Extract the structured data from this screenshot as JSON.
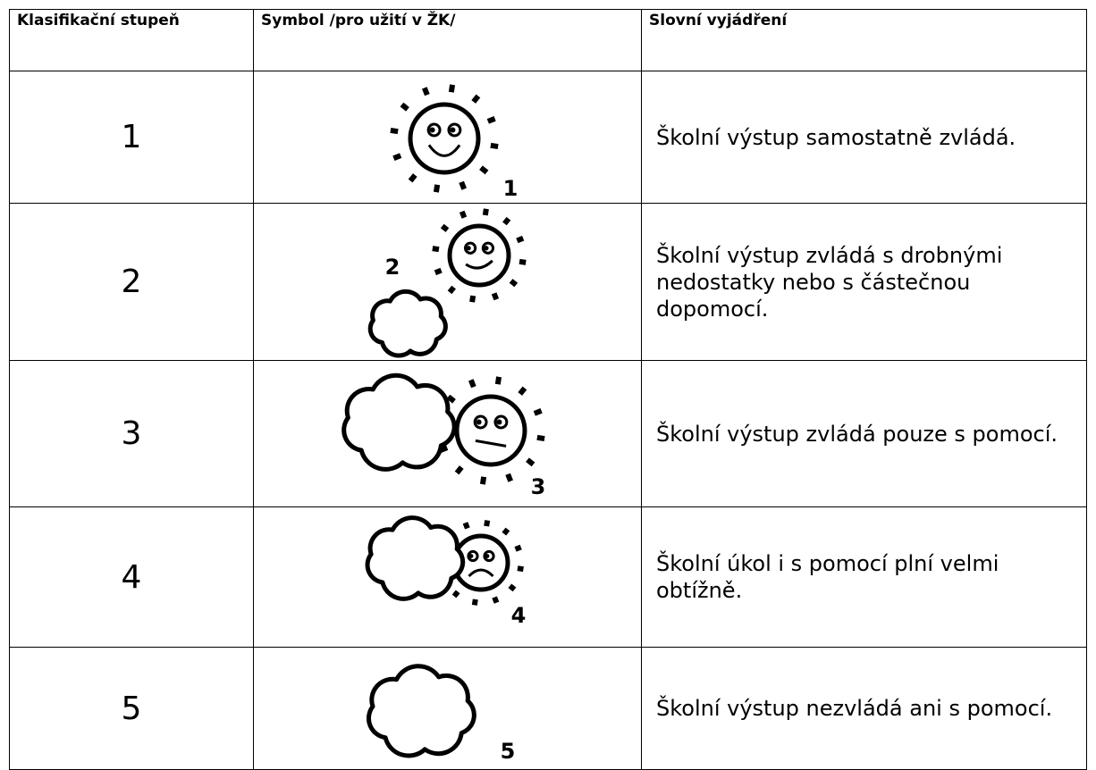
{
  "table": {
    "header": [
      "Klasifikační stupeň",
      "Symbol /pro užití v ŽK/",
      "Slovní vyjádření"
    ],
    "rows": [
      {
        "grade": "1",
        "symbol_label": "1",
        "description": "Školní výstup samostatně zvládá."
      },
      {
        "grade": "2",
        "symbol_label": "2",
        "description": "Školní výstup zvládá s drobnými nedostatky nebo s částečnou dopomocí."
      },
      {
        "grade": "3",
        "symbol_label": "3",
        "description": "Školní výstup zvládá pouze s pomocí."
      },
      {
        "grade": "4",
        "symbol_label": "4",
        "description": "Školní úkol i s pomocí plní velmi obtížně."
      },
      {
        "grade": "5",
        "symbol_label": "5",
        "description": "Školní výstup nezvládá ani s pomocí."
      }
    ]
  }
}
